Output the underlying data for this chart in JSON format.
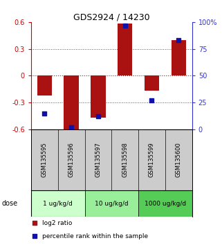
{
  "title": "GDS2924 / 14230",
  "samples": [
    "GSM135595",
    "GSM135596",
    "GSM135597",
    "GSM135598",
    "GSM135599",
    "GSM135600"
  ],
  "log2_ratio": [
    -0.22,
    -0.6,
    -0.47,
    0.58,
    -0.17,
    0.4
  ],
  "percentile_rank": [
    15,
    2,
    12,
    97,
    27,
    83
  ],
  "bar_color": "#AA1111",
  "dot_color": "#1111AA",
  "ylim_left": [
    -0.6,
    0.6
  ],
  "ylim_right": [
    0,
    100
  ],
  "yticks_left": [
    -0.6,
    -0.3,
    0.0,
    0.3,
    0.6
  ],
  "yticks_right": [
    0,
    25,
    50,
    75,
    100
  ],
  "ytick_labels_left": [
    "-0.6",
    "-0.3",
    "0",
    "0.3",
    "0.6"
  ],
  "ytick_labels_right": [
    "0",
    "25",
    "50",
    "75",
    "100%"
  ],
  "dose_groups": [
    {
      "label": "1 ug/kg/d",
      "n_samples": 2,
      "color": "#ccffcc"
    },
    {
      "label": "10 ug/kg/d",
      "n_samples": 2,
      "color": "#99ee99"
    },
    {
      "label": "1000 ug/kg/d",
      "n_samples": 2,
      "color": "#55cc55"
    }
  ],
  "dose_label": "dose",
  "legend_items": [
    {
      "color": "#AA1111",
      "label": "log2 ratio"
    },
    {
      "color": "#1111AA",
      "label": "percentile rank within the sample"
    }
  ],
  "hline_zero_color": "#cc0000",
  "hline_dotted_color": "#555555",
  "bar_width": 0.55,
  "dot_size": 25
}
